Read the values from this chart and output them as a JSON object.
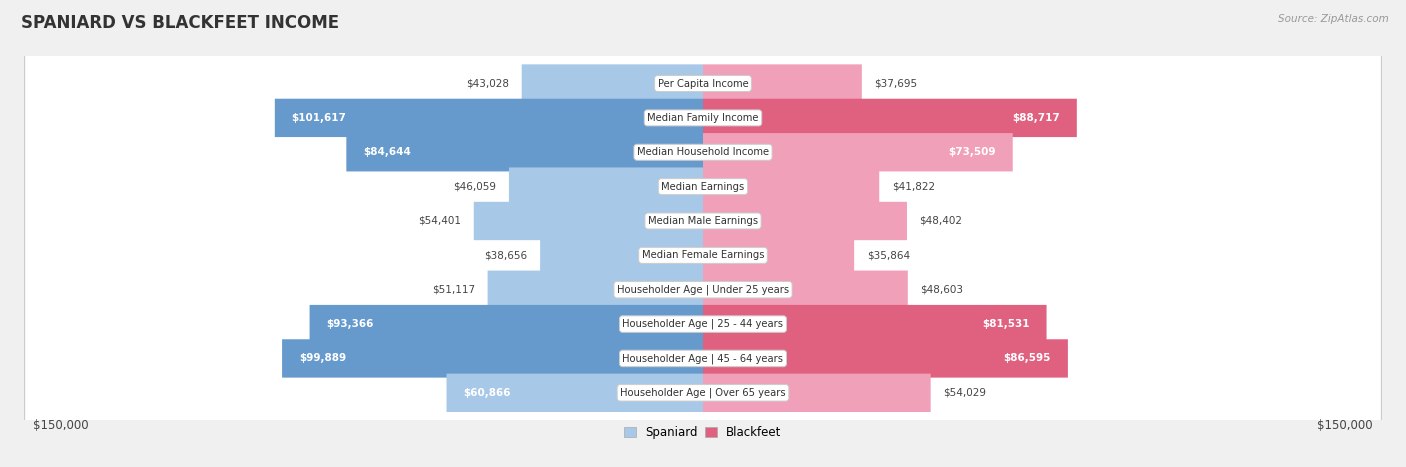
{
  "title": "SPANIARD VS BLACKFEET INCOME",
  "source": "Source: ZipAtlas.com",
  "categories": [
    "Per Capita Income",
    "Median Family Income",
    "Median Household Income",
    "Median Earnings",
    "Median Male Earnings",
    "Median Female Earnings",
    "Householder Age | Under 25 years",
    "Householder Age | 25 - 44 years",
    "Householder Age | 45 - 64 years",
    "Householder Age | Over 65 years"
  ],
  "spaniard_values": [
    43028,
    101617,
    84644,
    46059,
    54401,
    38656,
    51117,
    93366,
    99889,
    60866
  ],
  "blackfeet_values": [
    37695,
    88717,
    73509,
    41822,
    48402,
    35864,
    48603,
    81531,
    86595,
    54029
  ],
  "max_value": 150000,
  "spaniard_color_light": "#a8c8e8",
  "spaniard_color_dark": "#6699cc",
  "blackfeet_color_light": "#f0a0b8",
  "blackfeet_color_dark": "#e06080",
  "spaniard_label": "Spaniard",
  "blackfeet_label": "Blackfeet",
  "bg_color": "#f0f0f0",
  "row_bg_even": "#f8f8f8",
  "row_bg_odd": "#ebebeb",
  "inside_label_threshold": 55000,
  "bar_height": 0.62,
  "xlabel_left": "$150,000",
  "xlabel_right": "$150,000"
}
